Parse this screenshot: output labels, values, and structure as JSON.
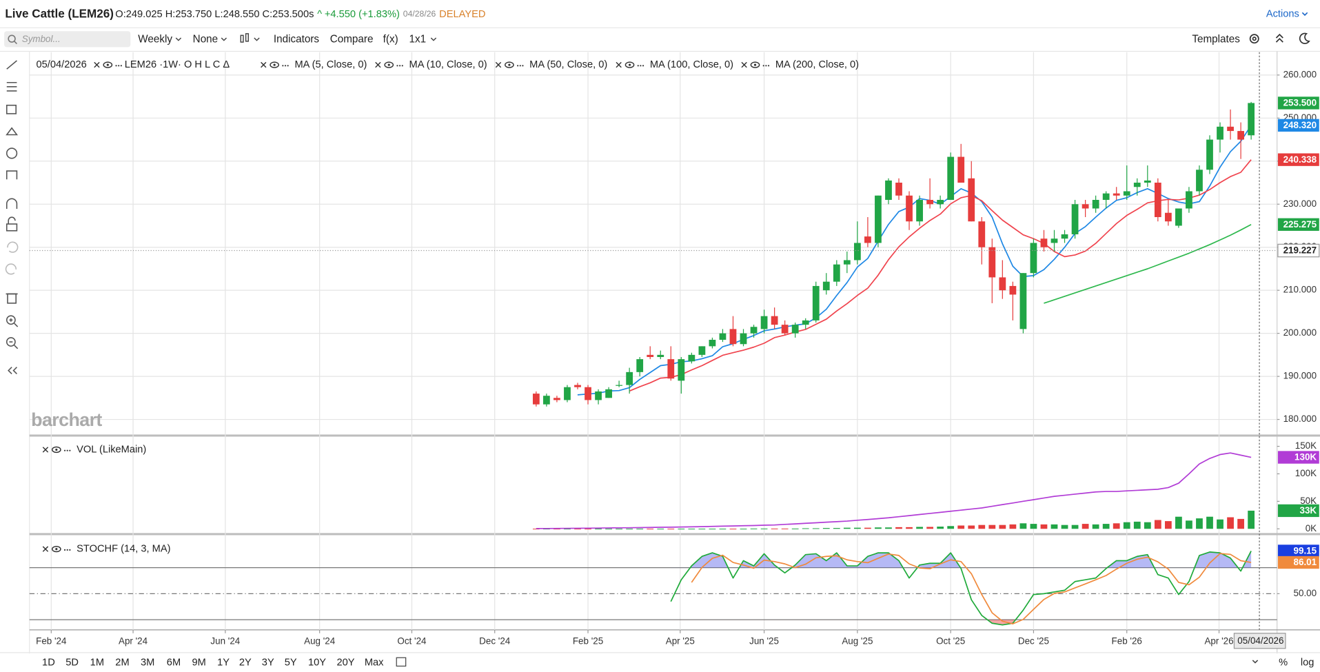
{
  "header": {
    "symbol": "Live Cattle (LEM26)",
    "quote": "O:249.025 H:253.750 L:248.550 C:253.500s",
    "arrow": "^",
    "change": "+4.550 (+1.83%)",
    "date": "04/28/26",
    "status": "DELAYED",
    "actions": "Actions"
  },
  "toolbar": {
    "search_placeholder": "Symbol...",
    "items": [
      "Weekly",
      "None",
      "Indicators",
      "Compare",
      "f(x)",
      "1x1"
    ],
    "templates": "Templates"
  },
  "ranges": [
    "1D",
    "5D",
    "1M",
    "2M",
    "3M",
    "6M",
    "9M",
    "1Y",
    "2Y",
    "3Y",
    "5Y",
    "10Y",
    "20Y",
    "Max"
  ],
  "bottom_right": [
    "%",
    "log"
  ],
  "watermark": "barchart",
  "crosshair_date": "05/04/2026",
  "chart_data": [
    {
      "type": "candlestick",
      "legend_date": "05/04/2026",
      "legend_symbol": "LEM26 ·1W· O H L C Δ",
      "up_color": "#21a546",
      "down_color": "#e63c3c",
      "grid": true,
      "xlim": [
        -48.9,
        71.5
      ],
      "xticks": [
        {
          "value": -46.8,
          "label": "Feb '24"
        },
        {
          "value": -38.9,
          "label": "Apr '24"
        },
        {
          "value": -30,
          "label": "Jun '24"
        },
        {
          "value": -20.9,
          "label": "Aug '24"
        },
        {
          "value": -12,
          "label": "Oct '24"
        },
        {
          "value": -4,
          "label": "Dec '24"
        },
        {
          "value": 5,
          "label": "Feb '25"
        },
        {
          "value": 13.9,
          "label": "Apr '25"
        },
        {
          "value": 22,
          "label": "Jun '25"
        },
        {
          "value": 31,
          "label": "Aug '25"
        },
        {
          "value": 40,
          "label": "Oct '25"
        },
        {
          "value": 48,
          "label": "Dec '25"
        },
        {
          "value": 57,
          "label": "Feb '26"
        },
        {
          "value": 65.9,
          "label": "Apr '26"
        }
      ],
      "ylim": [
        176.3,
        265.3
      ],
      "yticks": [
        {
          "value": 180,
          "label": "180.000"
        },
        {
          "value": 190,
          "label": "190.000"
        },
        {
          "value": 200,
          "label": "200.000"
        },
        {
          "value": 210,
          "label": "210.000"
        },
        {
          "value": 220,
          "label": "220.000"
        },
        {
          "value": 230,
          "label": "230.000"
        },
        {
          "value": 240,
          "label": "240.000"
        },
        {
          "value": 250,
          "label": "250.000"
        },
        {
          "value": 260,
          "label": "260.000"
        }
      ],
      "open": [
        186,
        183.5,
        185,
        184.5,
        188,
        187.5,
        184.5,
        185,
        188,
        188,
        191,
        195,
        194.5,
        194,
        189,
        193.5,
        195,
        197,
        198.5,
        201,
        197.5,
        200,
        201,
        204,
        202,
        200,
        202,
        203,
        210,
        212,
        216,
        217,
        222.5,
        221,
        231,
        235,
        232,
        226,
        231,
        230,
        231,
        241,
        236,
        226,
        220,
        213,
        211,
        201,
        214,
        222,
        221,
        222,
        223,
        230,
        229,
        231,
        232.5,
        232,
        234,
        235,
        235,
        228,
        225,
        229,
        233,
        238,
        245,
        248,
        247,
        246
      ],
      "high": [
        186.5,
        186,
        185.5,
        188,
        188.5,
        188,
        187,
        187.5,
        189,
        192,
        194.5,
        197,
        196,
        197,
        194.5,
        195.5,
        197,
        199,
        201,
        204,
        201,
        202,
        205.5,
        206,
        203,
        202.5,
        203.5,
        212,
        214,
        217,
        219,
        226,
        227,
        232,
        236,
        236,
        233,
        232,
        236,
        232,
        242,
        244,
        240,
        227,
        222,
        217,
        212,
        214,
        222,
        224,
        224,
        224,
        231,
        231,
        232,
        233,
        234,
        239,
        236,
        239,
        236,
        231,
        229,
        234,
        239,
        246,
        249,
        252,
        249,
        253.75
      ],
      "low": [
        183,
        183,
        184,
        184,
        187,
        183.5,
        183.5,
        185,
        187.5,
        186,
        190,
        194,
        194,
        189,
        186,
        193,
        194.5,
        196.5,
        198,
        197,
        197,
        199,
        200,
        201,
        199.5,
        199,
        201,
        202.5,
        209,
        211,
        214,
        216,
        220,
        220,
        230,
        231,
        224,
        225,
        229,
        229,
        231,
        235,
        226,
        216,
        207,
        208,
        203,
        200,
        213,
        219,
        219,
        221,
        222,
        227,
        228,
        229,
        231,
        231,
        232,
        234,
        226,
        225,
        224.5,
        228,
        232,
        237,
        242,
        245,
        240.5,
        245
      ],
      "close": [
        183.5,
        185.5,
        184.5,
        187.5,
        187.5,
        184.5,
        186.5,
        187,
        188,
        191,
        194,
        194.5,
        195,
        189.5,
        194,
        195,
        197,
        198.5,
        200,
        197.5,
        200,
        201.5,
        204,
        202,
        200,
        202,
        203,
        211,
        212,
        216,
        217,
        221,
        221,
        232,
        235.5,
        232,
        226,
        231,
        230,
        231,
        241,
        235,
        226,
        220,
        213,
        210,
        209,
        214,
        221,
        220,
        222,
        223,
        230,
        229,
        231,
        232.5,
        232,
        233,
        235,
        235.5,
        227,
        226,
        229,
        233,
        238,
        245,
        248,
        247,
        245,
        253.5
      ],
      "series": [
        {
          "name": "MA (5, Close, 0)",
          "color": "#1e88e5",
          "values": [
            null,
            null,
            null,
            null,
            185.7,
            185.9,
            186.1,
            186.6,
            186.7,
            187.4,
            189.3,
            190.9,
            192.5,
            192.8,
            193.4,
            193.6,
            194.1,
            194.8,
            196.9,
            197.6,
            198.6,
            199.5,
            200.6,
            201,
            201.5,
            201.9,
            202.2,
            203.6,
            205.6,
            208.8,
            211.8,
            215.4,
            217.4,
            221.4,
            225.3,
            228.3,
            229.3,
            231.3,
            230.9,
            230,
            231.8,
            233.6,
            232.6,
            230.6,
            227,
            220.8,
            215.6,
            213.2,
            213.4,
            214.8,
            217.2,
            220,
            223.2,
            224.8,
            227,
            229.1,
            230.9,
            231.5,
            232.7,
            233.6,
            232.5,
            231.3,
            230.5,
            230.1,
            230.6,
            234.2,
            238.6,
            242.2,
            244.6,
            248.32
          ]
        },
        {
          "name": "MA (10, Close, 0)",
          "color": "#f0434d",
          "values": [
            null,
            null,
            null,
            null,
            null,
            null,
            null,
            null,
            null,
            186.6,
            187.6,
            188.5,
            189.6,
            189.8,
            190.4,
            191.5,
            192.5,
            193.7,
            194.9,
            195.5,
            196.1,
            196.8,
            197.7,
            199,
            199.6,
            200.3,
            200.9,
            202.1,
            203.3,
            205.2,
            206.9,
            208.8,
            210.5,
            213.5,
            217.1,
            220.1,
            222.4,
            224.4,
            226.2,
            227.7,
            230.1,
            231.5,
            232,
            230.8,
            228.5,
            226.3,
            224.6,
            222.9,
            222,
            220.9,
            219,
            217.8,
            218.2,
            219.1,
            220.9,
            223.2,
            225.5,
            227.4,
            228.8,
            230.3,
            230.8,
            231.1,
            231,
            231.4,
            232.1,
            233.4,
            235,
            236.4,
            237.4,
            240.338
          ]
        },
        {
          "name": "MA (50, Close, 0)",
          "color": "#2db84d",
          "values": [
            null,
            null,
            null,
            null,
            null,
            null,
            null,
            null,
            null,
            null,
            null,
            null,
            null,
            null,
            null,
            null,
            null,
            null,
            null,
            null,
            null,
            null,
            null,
            null,
            null,
            null,
            null,
            null,
            null,
            null,
            null,
            null,
            null,
            null,
            null,
            null,
            null,
            null,
            null,
            null,
            null,
            null,
            null,
            null,
            null,
            null,
            null,
            null,
            null,
            207,
            207.8,
            208.6,
            209.4,
            210.2,
            211,
            211.8,
            212.6,
            213.4,
            214.2,
            215,
            215.9,
            216.8,
            217.7,
            218.6,
            219.6,
            220.6,
            221.7,
            222.8,
            224,
            225.275
          ]
        }
      ],
      "inactive_legend": [
        "MA (100, Close, 0)",
        "MA (200, Close, 0)"
      ],
      "badges": [
        {
          "value": 253.5,
          "label": "253.500",
          "color": "#21a546"
        },
        {
          "value": 248.32,
          "label": "248.320",
          "color": "#1e88e5"
        },
        {
          "value": 240.338,
          "label": "240.338",
          "color": "#e63c3c"
        },
        {
          "value": 225.275,
          "label": "225.275",
          "color": "#21a546"
        },
        {
          "value": 219.227,
          "label": "219.227",
          "color": "#ffffff",
          "dotted": true
        }
      ]
    },
    {
      "type": "bar",
      "title": "VOL (LikeMain)",
      "up_color": "#21a546",
      "down_color": "#e63c3c",
      "ylim": [
        -7.7,
        168.4
      ],
      "yticks": [
        {
          "value": 0,
          "label": "0K"
        },
        {
          "value": 50,
          "label": "50K"
        },
        {
          "value": 100,
          "label": "100K"
        },
        {
          "value": 150,
          "label": "150K"
        }
      ],
      "values": [
        0.2,
        0.2,
        0.2,
        0.2,
        0.2,
        0.2,
        0.2,
        0.2,
        0.2,
        0.2,
        0.2,
        0.2,
        0.2,
        0.2,
        0.2,
        0.2,
        0.2,
        0.2,
        0.2,
        0.2,
        0.2,
        0.5,
        0.5,
        0.5,
        0.5,
        0.5,
        1,
        1,
        1.5,
        1.5,
        2,
        2,
        2,
        2.5,
        2.5,
        3,
        3,
        3.5,
        3.5,
        4,
        5,
        6,
        6,
        7,
        7,
        7,
        8,
        10,
        9,
        8,
        8,
        7,
        7,
        9,
        8,
        9,
        10,
        12,
        13,
        12,
        16,
        14,
        22,
        15,
        19,
        22,
        17,
        21,
        18,
        33
      ],
      "series": [
        {
          "color": "#b13cd6",
          "values": [
            0.5,
            0.6,
            0.7,
            0.8,
            1,
            1.2,
            1.4,
            1.6,
            1.8,
            2,
            2.2,
            2.5,
            2.8,
            3,
            3.3,
            3.6,
            4,
            4.4,
            4.8,
            5.2,
            5.6,
            6,
            6.5,
            7,
            8,
            9,
            10,
            11,
            12,
            13,
            14,
            15.5,
            17,
            18.5,
            20,
            22,
            24,
            26,
            28,
            30,
            32,
            34,
            36,
            38,
            41,
            44,
            47,
            50,
            53,
            56,
            59,
            61,
            63,
            65,
            67,
            68,
            68,
            69,
            70,
            71,
            72,
            75,
            83,
            100,
            118,
            128,
            135,
            138,
            134,
            130
          ]
        }
      ],
      "badges": [
        {
          "value": 130,
          "label": "130K",
          "color": "#b13cd6"
        },
        {
          "value": 33,
          "label": "33K",
          "color": "#21a546"
        }
      ]
    },
    {
      "type": "stochastic",
      "title": "STOCHF (14, 3, MA)",
      "ylim": [
        8.3,
        117.9
      ],
      "grid": "dashdot",
      "yticks": [
        {
          "value": 50,
          "label": "50.00"
        }
      ],
      "levels": [
        80,
        20
      ],
      "overbought_color": "#5b63e8",
      "oversold_color": "#e63c3c",
      "series": [
        {
          "color": "#1faa3a",
          "values": [
            null,
            null,
            null,
            null,
            null,
            null,
            null,
            null,
            null,
            null,
            null,
            null,
            null,
            41,
            66,
            82,
            93,
            97,
            93,
            68,
            88,
            82,
            96,
            83,
            74,
            83,
            95,
            96,
            88,
            97,
            82,
            82,
            93,
            97,
            97,
            88,
            68,
            83,
            85,
            85,
            97,
            79,
            43,
            25,
            16,
            14,
            16,
            31,
            49,
            50,
            52,
            54,
            64,
            66,
            68,
            79,
            88,
            88,
            93,
            95,
            72,
            68,
            49,
            64,
            94,
            98,
            97,
            91,
            76,
            99.15
          ]
        },
        {
          "color": "#f08a3c",
          "values": [
            null,
            null,
            null,
            null,
            null,
            null,
            null,
            null,
            null,
            null,
            null,
            null,
            null,
            null,
            null,
            63,
            80.3,
            90.7,
            94.3,
            86,
            83,
            79.3,
            88.7,
            87,
            84.3,
            80,
            84,
            91.3,
            93,
            93.7,
            89,
            87,
            85.7,
            90.7,
            95.7,
            94,
            84.3,
            79.7,
            78.7,
            84.3,
            89,
            87,
            73,
            49,
            28,
            18.3,
            15.3,
            20.3,
            32,
            43.3,
            50.3,
            52,
            56.7,
            61.3,
            66,
            71,
            78.3,
            85,
            89.7,
            92,
            86.7,
            78.3,
            63,
            60.3,
            69,
            85.3,
            96.3,
            95.3,
            88,
            86.01
          ]
        }
      ],
      "badges": [
        {
          "value": 99.15,
          "label": "99.15",
          "color": "#1a3fe0"
        },
        {
          "value": 86.01,
          "label": "86.01",
          "color": "#f08a3c"
        }
      ]
    }
  ]
}
